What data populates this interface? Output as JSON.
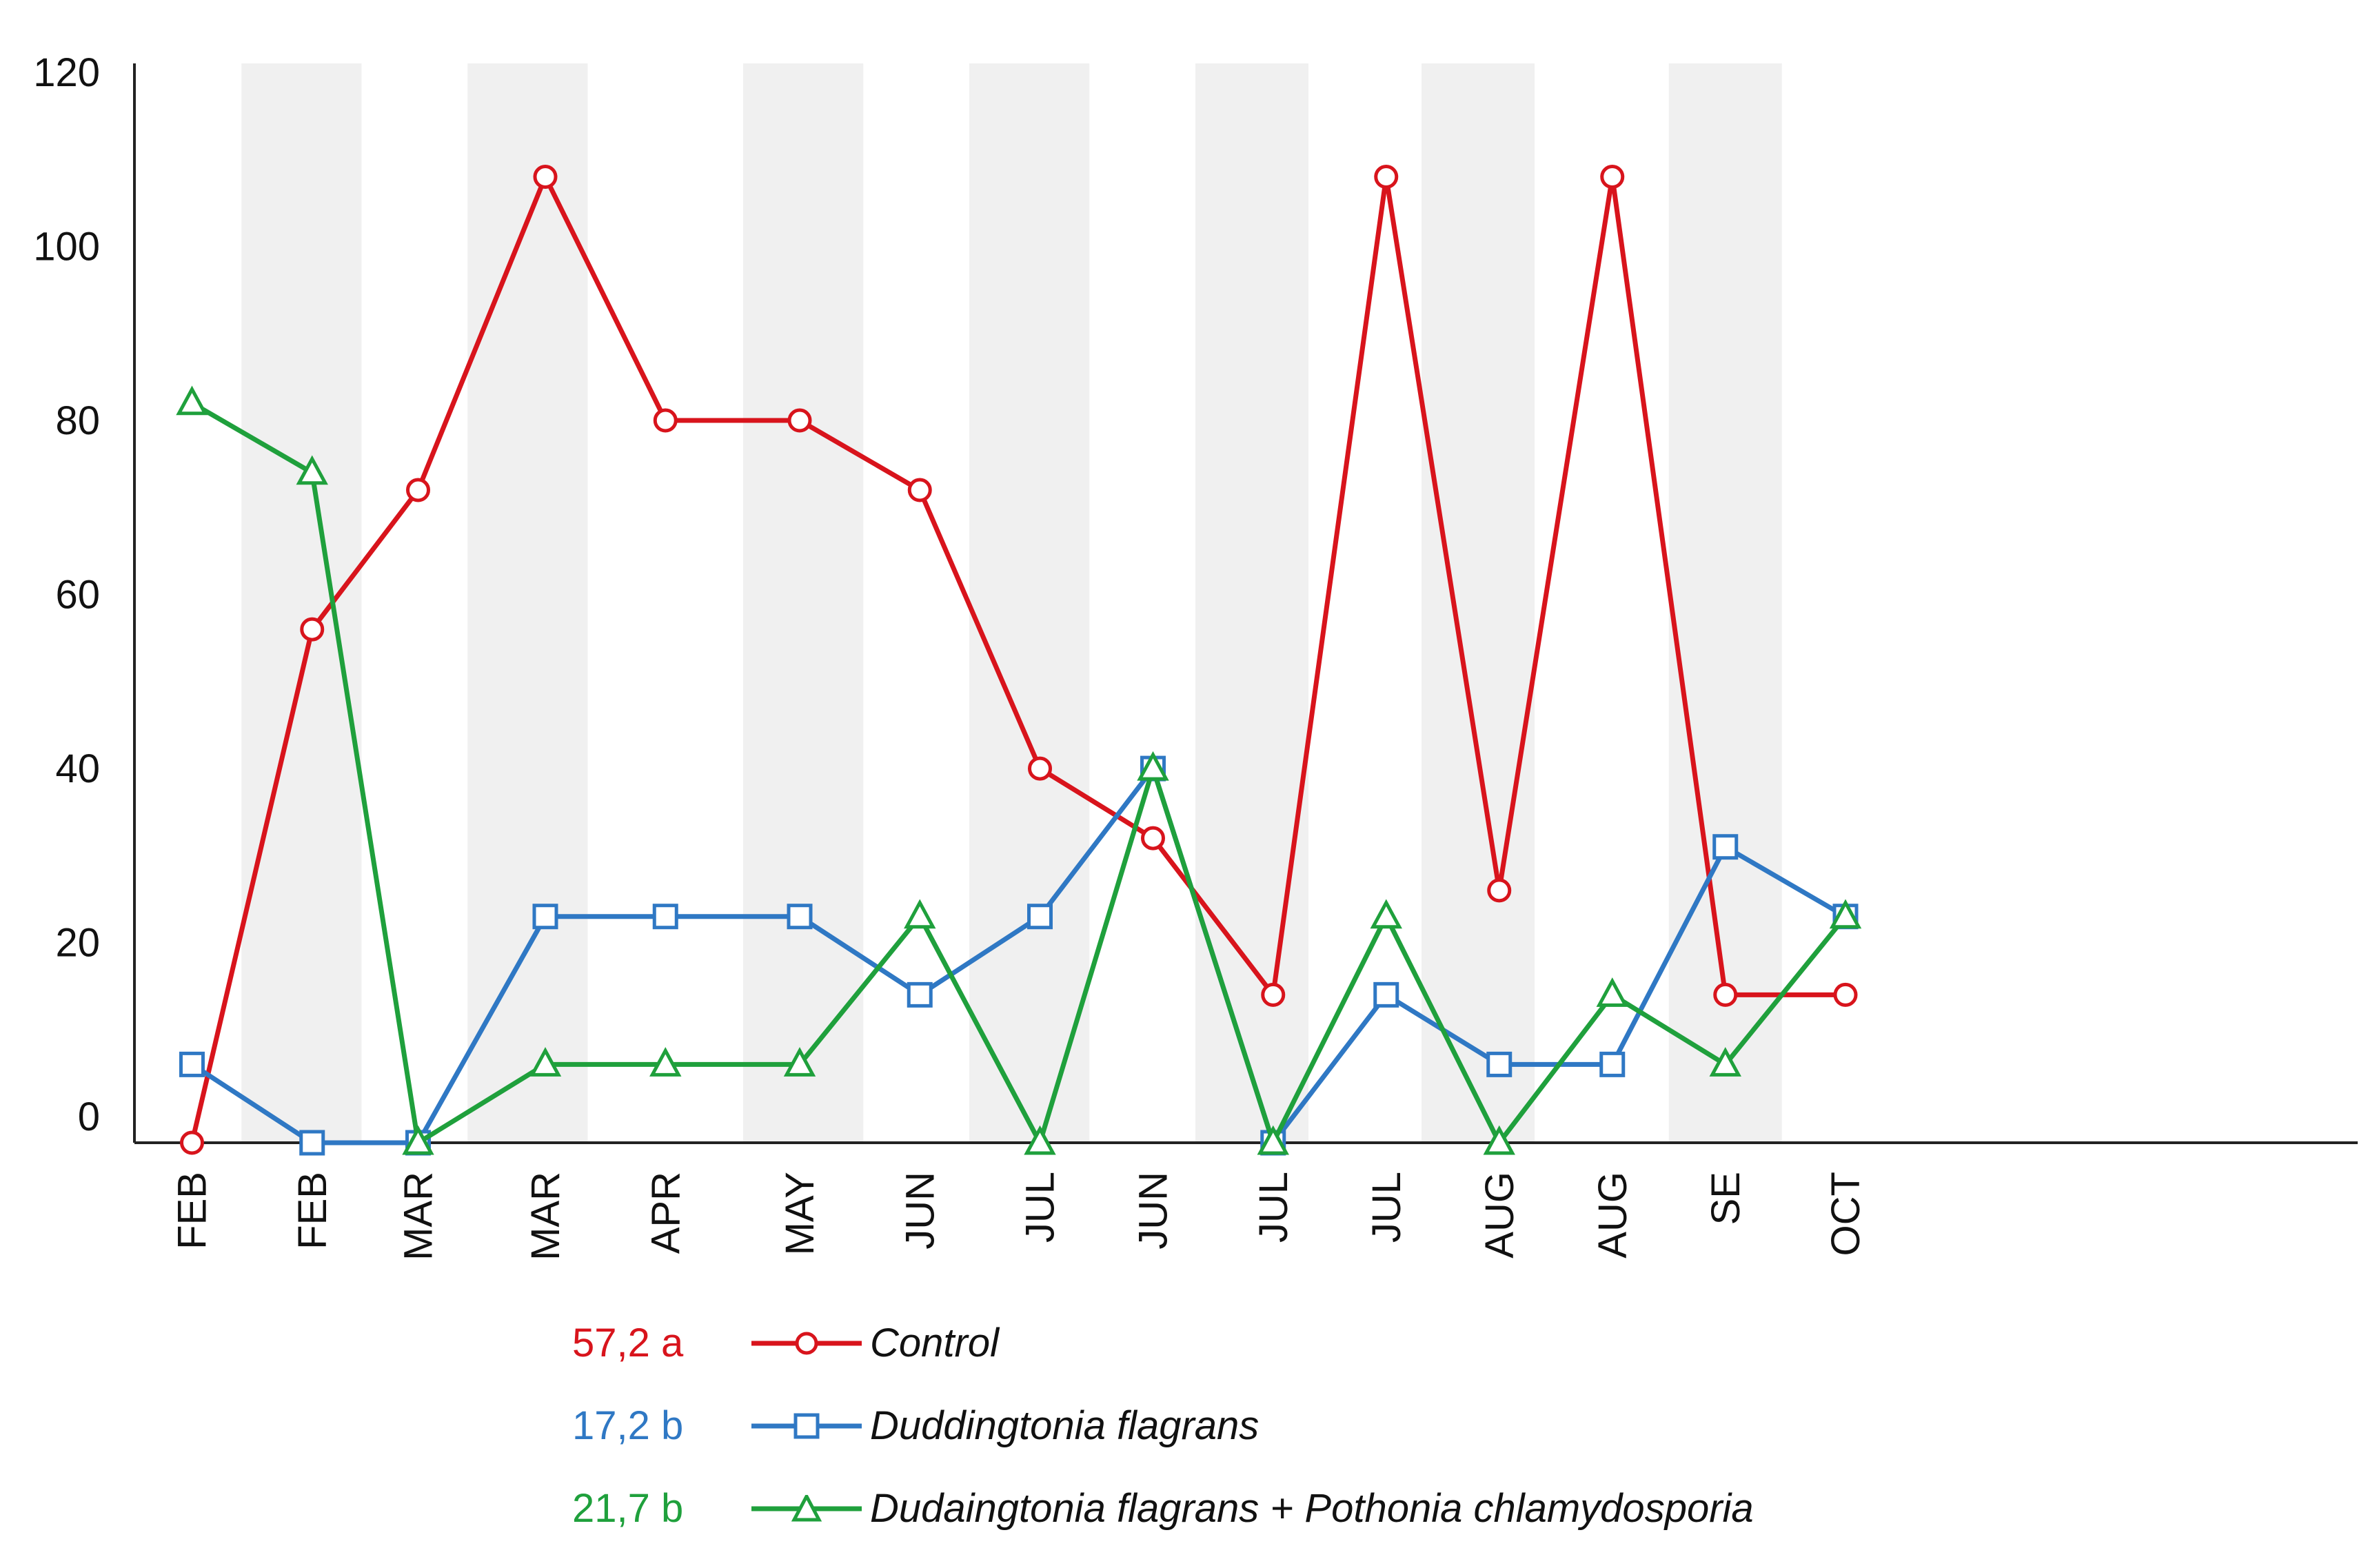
{
  "chart_data": {
    "type": "line",
    "title": "",
    "xlabel": "",
    "ylabel": "",
    "ylim": [
      -3,
      120
    ],
    "yticks": [
      0,
      20,
      40,
      60,
      80,
      100,
      120
    ],
    "categories": [
      "FEB",
      "FEB",
      "MAR",
      "MAR",
      "APR",
      "MAY",
      "JUN",
      "JUL",
      "JUN",
      "JUL",
      "JUL",
      "AUG",
      "AUG",
      "SE",
      "OCT"
    ],
    "x": [
      0.7,
      1.55,
      2.3,
      3.2,
      4.05,
      5.0,
      5.85,
      6.7,
      7.5,
      8.35,
      9.15,
      9.95,
      10.75,
      11.55,
      12.4
    ],
    "shaded_bands": [
      [
        1.05,
        1.9
      ],
      [
        2.65,
        3.5
      ],
      [
        4.6,
        5.45
      ],
      [
        6.2,
        7.05
      ],
      [
        7.8,
        8.6
      ],
      [
        9.4,
        10.2
      ],
      [
        11.15,
        11.95
      ]
    ],
    "series": [
      {
        "name": "Control",
        "stat": "57,2 a",
        "color": "#d8141c",
        "marker": "circle",
        "values": [
          -3,
          56,
          72,
          108,
          80,
          80,
          72,
          40,
          32,
          14,
          108,
          26,
          108,
          14,
          14
        ]
      },
      {
        "name": "Duddingtonia flagrans",
        "stat": "17,2 b",
        "color": "#2f78c4",
        "marker": "square",
        "values": [
          6,
          -3,
          -3,
          23,
          23,
          23,
          14,
          23,
          40,
          -3,
          14,
          6,
          6,
          31,
          23
        ]
      },
      {
        "name": "Dudaingtonia flagrans + Pothonia chlamydosporia",
        "stat": "21,7 b",
        "color": "#1fa03c",
        "marker": "triangle",
        "values": [
          82,
          74,
          -3,
          6,
          6,
          6,
          23,
          -3,
          40,
          -3,
          23,
          -3,
          14,
          6,
          23
        ]
      }
    ]
  }
}
